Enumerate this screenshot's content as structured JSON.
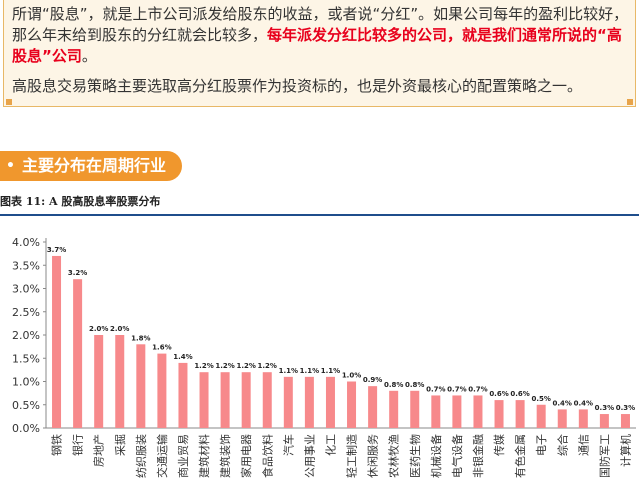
{
  "callout": {
    "para1_normal": "所谓“股息”，就是上市公司派发给股东的收益，或者说“分红”。如果公司每年的盈利比较好，那么年末给到股东的分红就会比较多，",
    "para1_highlight": "每年派发分红比较多的公司，就是我们通常所说的“高股息”公司",
    "para1_end": "。",
    "para2": "高股息交易策略主要选取高分红股票作为投资标的，也是外资最核心的配置策略之一。"
  },
  "section": {
    "bullet": "•",
    "title": "主要分布在周期行业"
  },
  "figure": {
    "caption": "图表  11: A 股高股息率股票分布"
  },
  "colors": {
    "bar": "#f7898b",
    "accent": "#f0972d",
    "highlight_text": "#e8001c",
    "callout_bg": "#fdf5e6",
    "rule": "#1f4e8c"
  },
  "chart_data": {
    "type": "bar",
    "categories": [
      "钢铁",
      "银行",
      "房地产",
      "采掘",
      "纺织服装",
      "交通运输",
      "商业贸易",
      "建筑材料",
      "建筑装饰",
      "家用电器",
      "食品饮料",
      "汽车",
      "公用事业",
      "化工",
      "轻工制造",
      "休闲服务",
      "农林牧渔",
      "医药生物",
      "机械设备",
      "电气设备",
      "非银金融",
      "传媒",
      "有色金属",
      "电子",
      "综合",
      "通信",
      "国防军工",
      "计算机"
    ],
    "values": [
      3.7,
      3.2,
      2.0,
      2.0,
      1.8,
      1.6,
      1.4,
      1.2,
      1.2,
      1.2,
      1.2,
      1.1,
      1.1,
      1.1,
      1.0,
      0.9,
      0.8,
      0.8,
      0.7,
      0.7,
      0.7,
      0.6,
      0.6,
      0.5,
      0.4,
      0.4,
      0.3,
      0.3
    ],
    "data_labels": [
      "3.7%",
      "3.2%",
      "2.0%",
      "2.0%",
      "1.8%",
      "1.6%",
      "1.4%",
      "1.2%",
      "1.2%",
      "1.2%",
      "1.2%",
      "1.1%",
      "1.1%",
      "1.1%",
      "1.0%",
      "0.9%",
      "0.8%",
      "0.8%",
      "0.7%",
      "0.7%",
      "0.7%",
      "0.6%",
      "0.6%",
      "0.5%",
      "0.4%",
      "0.4%",
      "0.3%",
      "0.3%"
    ],
    "y_ticks": [
      "0.0%",
      "0.5%",
      "1.0%",
      "1.5%",
      "2.0%",
      "2.5%",
      "3.0%",
      "3.5%",
      "4.0%"
    ],
    "ylim": [
      0,
      4.0
    ],
    "grid": false,
    "legend": "none"
  }
}
